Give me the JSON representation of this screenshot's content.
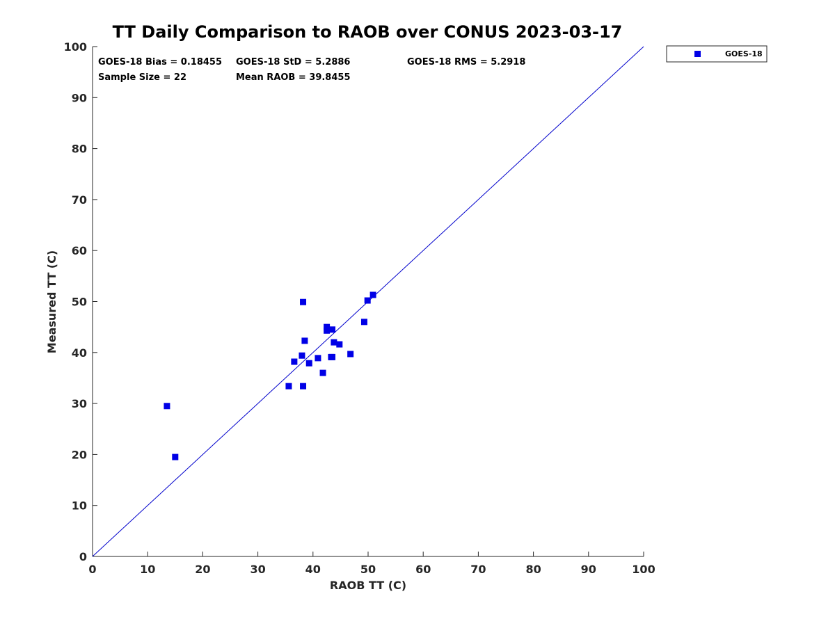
{
  "chart_data": {
    "type": "scatter",
    "title": "TT Daily Comparison to RAOB over CONUS 2023-03-17",
    "xlabel": "RAOB TT (C)",
    "ylabel": "Measured TT (C)",
    "xlim": [
      0,
      100
    ],
    "ylim": [
      0,
      100
    ],
    "xticks": [
      0,
      10,
      20,
      30,
      40,
      50,
      60,
      70,
      80,
      90,
      100
    ],
    "yticks": [
      0,
      10,
      20,
      30,
      40,
      50,
      60,
      70,
      80,
      90,
      100
    ],
    "grid": false,
    "legend_position": "outside-top-right",
    "reference_line": {
      "from": [
        0,
        0
      ],
      "to": [
        100,
        100
      ],
      "color": "#0000cc"
    },
    "series": [
      {
        "name": "GOES-18",
        "color": "#0000e6",
        "marker": "square",
        "points": [
          {
            "x": 13.5,
            "y": 29.5
          },
          {
            "x": 15.0,
            "y": 19.5
          },
          {
            "x": 35.6,
            "y": 33.4
          },
          {
            "x": 36.6,
            "y": 38.2
          },
          {
            "x": 38.0,
            "y": 39.4
          },
          {
            "x": 38.2,
            "y": 33.4
          },
          {
            "x": 38.2,
            "y": 49.9
          },
          {
            "x": 38.5,
            "y": 42.3
          },
          {
            "x": 39.3,
            "y": 37.9
          },
          {
            "x": 40.9,
            "y": 38.9
          },
          {
            "x": 41.8,
            "y": 36.0
          },
          {
            "x": 42.5,
            "y": 45.0
          },
          {
            "x": 42.5,
            "y": 44.3
          },
          {
            "x": 43.3,
            "y": 39.1
          },
          {
            "x": 43.5,
            "y": 39.1
          },
          {
            "x": 43.5,
            "y": 44.5
          },
          {
            "x": 43.8,
            "y": 42.0
          },
          {
            "x": 44.8,
            "y": 41.6
          },
          {
            "x": 46.8,
            "y": 39.7
          },
          {
            "x": 49.3,
            "y": 46.0
          },
          {
            "x": 49.9,
            "y": 50.2
          },
          {
            "x": 50.9,
            "y": 51.3
          }
        ]
      }
    ]
  },
  "stats": {
    "bias": "GOES-18 Bias = 0.18455",
    "std": "GOES-18 StD = 5.2886",
    "rms": "GOES-18 RMS = 5.2918",
    "sample_size": "Sample Size = 22",
    "mean_raob": "Mean RAOB = 39.8455"
  },
  "legend": {
    "entries": [
      {
        "label": "GOES-18",
        "color": "#0000e6"
      }
    ]
  }
}
